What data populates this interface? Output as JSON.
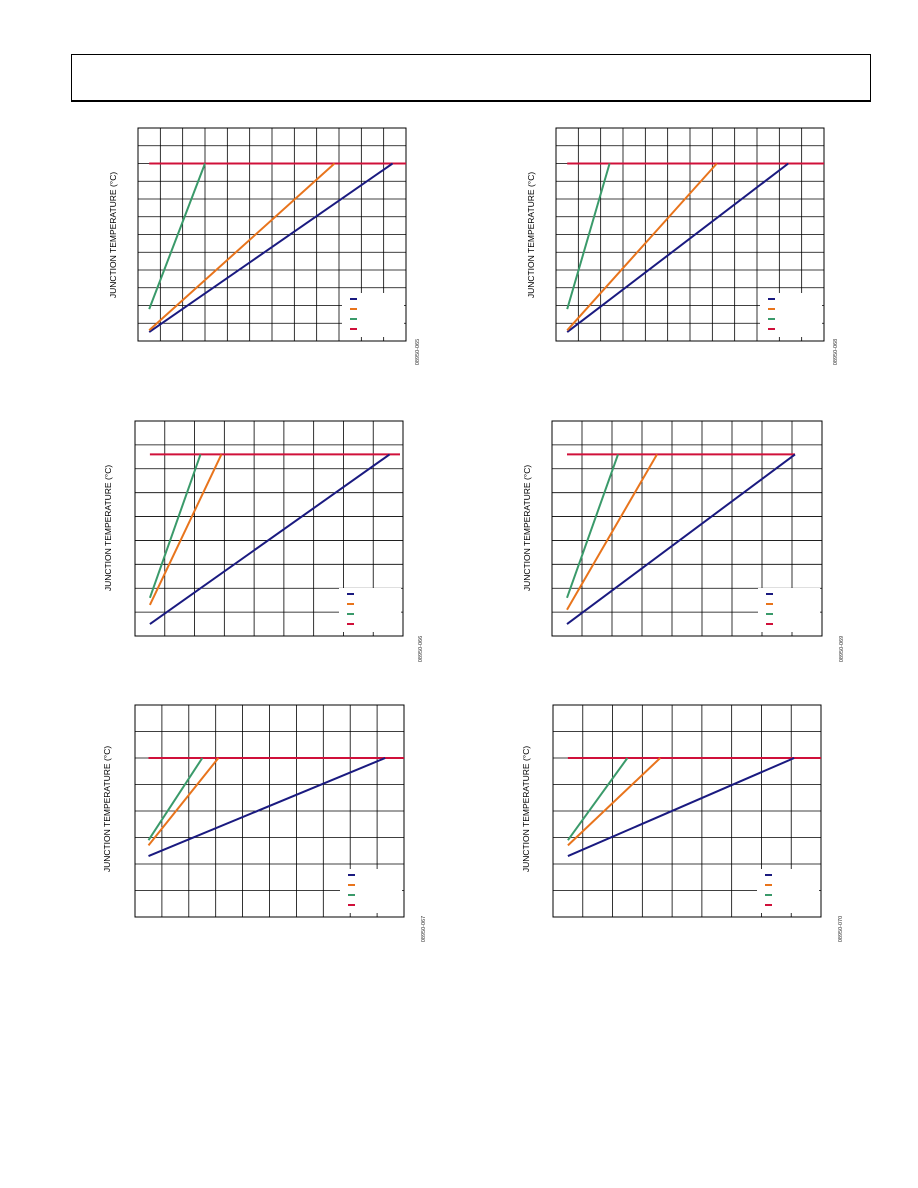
{
  "page": {
    "header_text": ""
  },
  "colors": {
    "blue": "#1a1a80",
    "orange": "#e8741c",
    "green": "#3a9a6a",
    "red": "#d0103a",
    "grid": "#000000"
  },
  "charts": [
    {
      "ylabel": "JUNCTION TEMPERATURE (°C)",
      "fignum": "08950-065"
    },
    {
      "ylabel": "JUNCTION TEMPERATURE (°C)",
      "fignum": "08950-068"
    },
    {
      "ylabel": "JUNCTION TEMPERATURE (°C)",
      "fignum": "08950-066"
    },
    {
      "ylabel": "JUNCTION TEMPERATURE (°C)",
      "fignum": "08950-069"
    },
    {
      "ylabel": "JUNCTION TEMPERATURE (°C)",
      "fignum": "08950-067"
    },
    {
      "ylabel": "JUNCTION TEMPERATURE (°C)",
      "fignum": "08950-070"
    }
  ],
  "chart_data": [
    {
      "type": "line",
      "ylabel": "JUNCTION TEMPERATURE (°C)",
      "grid": true,
      "legend": "bottom-right",
      "x_divisions": 12,
      "y_divisions": 12,
      "xlim": [
        0,
        12
      ],
      "ylim": [
        0,
        12
      ],
      "series": [
        {
          "color": "#1a1a80",
          "points": [
            [
              0.5,
              0.5
            ],
            [
              11.4,
              10.0
            ]
          ]
        },
        {
          "color": "#e8741c",
          "points": [
            [
              0.5,
              0.6
            ],
            [
              8.8,
              10.0
            ]
          ]
        },
        {
          "color": "#3a9a6a",
          "points": [
            [
              0.5,
              1.8
            ],
            [
              3.0,
              10.0
            ]
          ]
        },
        {
          "color": "#d0103a",
          "points": [
            [
              0.5,
              10.0
            ],
            [
              12.0,
              10.0
            ]
          ]
        }
      ]
    },
    {
      "type": "line",
      "ylabel": "JUNCTION TEMPERATURE (°C)",
      "grid": true,
      "legend": "bottom-right",
      "x_divisions": 12,
      "y_divisions": 12,
      "xlim": [
        0,
        12
      ],
      "ylim": [
        0,
        12
      ],
      "series": [
        {
          "color": "#1a1a80",
          "points": [
            [
              0.5,
              0.5
            ],
            [
              10.4,
              10.0
            ]
          ]
        },
        {
          "color": "#e8741c",
          "points": [
            [
              0.5,
              0.6
            ],
            [
              7.2,
              10.0
            ]
          ]
        },
        {
          "color": "#3a9a6a",
          "points": [
            [
              0.5,
              1.8
            ],
            [
              2.4,
              10.0
            ]
          ]
        },
        {
          "color": "#d0103a",
          "points": [
            [
              0.5,
              10.0
            ],
            [
              12.0,
              10.0
            ]
          ]
        }
      ]
    },
    {
      "type": "line",
      "ylabel": "JUNCTION TEMPERATURE (°C)",
      "grid": true,
      "legend": "bottom-right",
      "x_divisions": 9,
      "y_divisions": 9,
      "xlim": [
        0,
        9
      ],
      "ylim": [
        0,
        9
      ],
      "series": [
        {
          "color": "#1a1a80",
          "points": [
            [
              0.5,
              0.5
            ],
            [
              8.55,
              7.6
            ]
          ]
        },
        {
          "color": "#e8741c",
          "points": [
            [
              0.5,
              1.3
            ],
            [
              2.9,
              7.6
            ]
          ]
        },
        {
          "color": "#3a9a6a",
          "points": [
            [
              0.5,
              1.6
            ],
            [
              2.2,
              7.6
            ]
          ]
        },
        {
          "color": "#d0103a",
          "points": [
            [
              0.5,
              7.6
            ],
            [
              8.9,
              7.6
            ]
          ]
        }
      ]
    },
    {
      "type": "line",
      "ylabel": "JUNCTION TEMPERATURE (°C)",
      "grid": true,
      "legend": "bottom-right",
      "x_divisions": 9,
      "y_divisions": 9,
      "xlim": [
        0,
        9
      ],
      "ylim": [
        0,
        9
      ],
      "series": [
        {
          "color": "#1a1a80",
          "points": [
            [
              0.5,
              0.5
            ],
            [
              8.1,
              7.6
            ]
          ]
        },
        {
          "color": "#e8741c",
          "points": [
            [
              0.5,
              1.1
            ],
            [
              3.5,
              7.6
            ]
          ]
        },
        {
          "color": "#3a9a6a",
          "points": [
            [
              0.5,
              1.6
            ],
            [
              2.2,
              7.6
            ]
          ]
        },
        {
          "color": "#d0103a",
          "points": [
            [
              0.5,
              7.6
            ],
            [
              8.1,
              7.6
            ]
          ]
        }
      ]
    },
    {
      "type": "line",
      "ylabel": "JUNCTION TEMPERATURE (°C)",
      "grid": true,
      "legend": "bottom-right",
      "x_divisions": 10,
      "y_divisions": 8,
      "xlim": [
        0,
        10
      ],
      "ylim": [
        0,
        8
      ],
      "series": [
        {
          "color": "#1a1a80",
          "points": [
            [
              0.5,
              2.3
            ],
            [
              9.3,
              6.0
            ]
          ]
        },
        {
          "color": "#e8741c",
          "points": [
            [
              0.5,
              2.7
            ],
            [
              3.1,
              6.0
            ]
          ]
        },
        {
          "color": "#3a9a6a",
          "points": [
            [
              0.5,
              2.9
            ],
            [
              2.5,
              6.0
            ]
          ]
        },
        {
          "color": "#d0103a",
          "points": [
            [
              0.5,
              6.0
            ],
            [
              10.0,
              6.0
            ]
          ]
        }
      ]
    },
    {
      "type": "line",
      "ylabel": "JUNCTION TEMPERATURE (°C)",
      "grid": true,
      "legend": "bottom-right",
      "x_divisions": 9,
      "y_divisions": 8,
      "xlim": [
        0,
        9
      ],
      "ylim": [
        0,
        8
      ],
      "series": [
        {
          "color": "#1a1a80",
          "points": [
            [
              0.5,
              2.3
            ],
            [
              8.1,
              6.0
            ]
          ]
        },
        {
          "color": "#e8741c",
          "points": [
            [
              0.5,
              2.7
            ],
            [
              3.6,
              6.0
            ]
          ]
        },
        {
          "color": "#3a9a6a",
          "points": [
            [
              0.5,
              2.9
            ],
            [
              2.5,
              6.0
            ]
          ]
        },
        {
          "color": "#d0103a",
          "points": [
            [
              0.5,
              6.0
            ],
            [
              9.0,
              6.0
            ]
          ]
        }
      ]
    }
  ]
}
